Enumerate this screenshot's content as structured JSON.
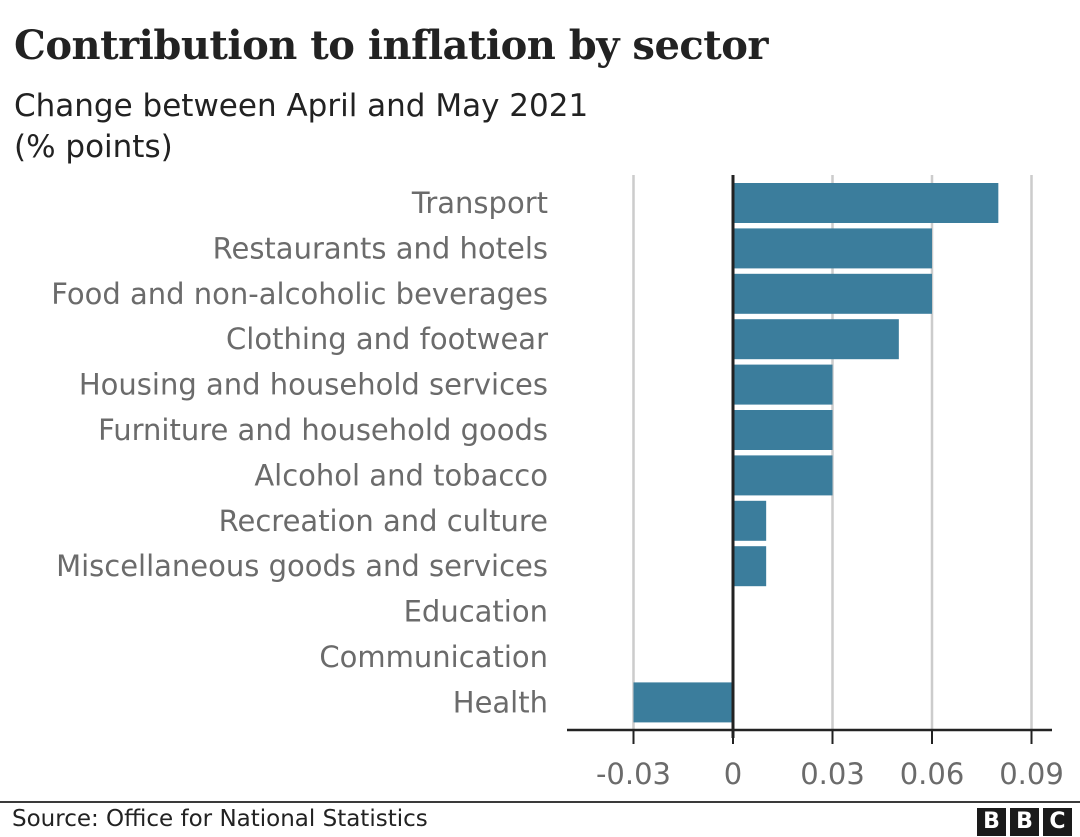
{
  "chart_data": {
    "type": "bar",
    "orientation": "horizontal",
    "title": "Contribution to inflation by sector",
    "subtitle": "Change between April and May 2021 (% points)",
    "subtitle_lines": [
      "Change between April and May 2021",
      "(% points)"
    ],
    "xlabel": "",
    "ylabel": "",
    "categories": [
      "Transport",
      "Restaurants and hotels",
      "Food and non-alcoholic beverages",
      "Clothing and footwear",
      "Housing and household services",
      "Furniture and household goods",
      "Alcohol and tobacco",
      "Recreation and culture",
      "Miscellaneous goods and services",
      "Education",
      "Communication",
      "Health"
    ],
    "values": [
      0.08,
      0.06,
      0.06,
      0.05,
      0.03,
      0.03,
      0.03,
      0.01,
      0.01,
      0.0,
      0.0,
      -0.03
    ],
    "xlim": [
      -0.05,
      0.097
    ],
    "xticks": [
      -0.03,
      0,
      0.03,
      0.06,
      0.09
    ],
    "xtick_labels": [
      "-0.03",
      "0",
      "0.03",
      "0.06",
      "0.09"
    ],
    "grid": "vertical",
    "bar_color": "#3b7d9c",
    "legend": "none"
  },
  "footer": {
    "source": "Source: Office for National Statistics",
    "logo_letters": [
      "B",
      "B",
      "C"
    ]
  }
}
